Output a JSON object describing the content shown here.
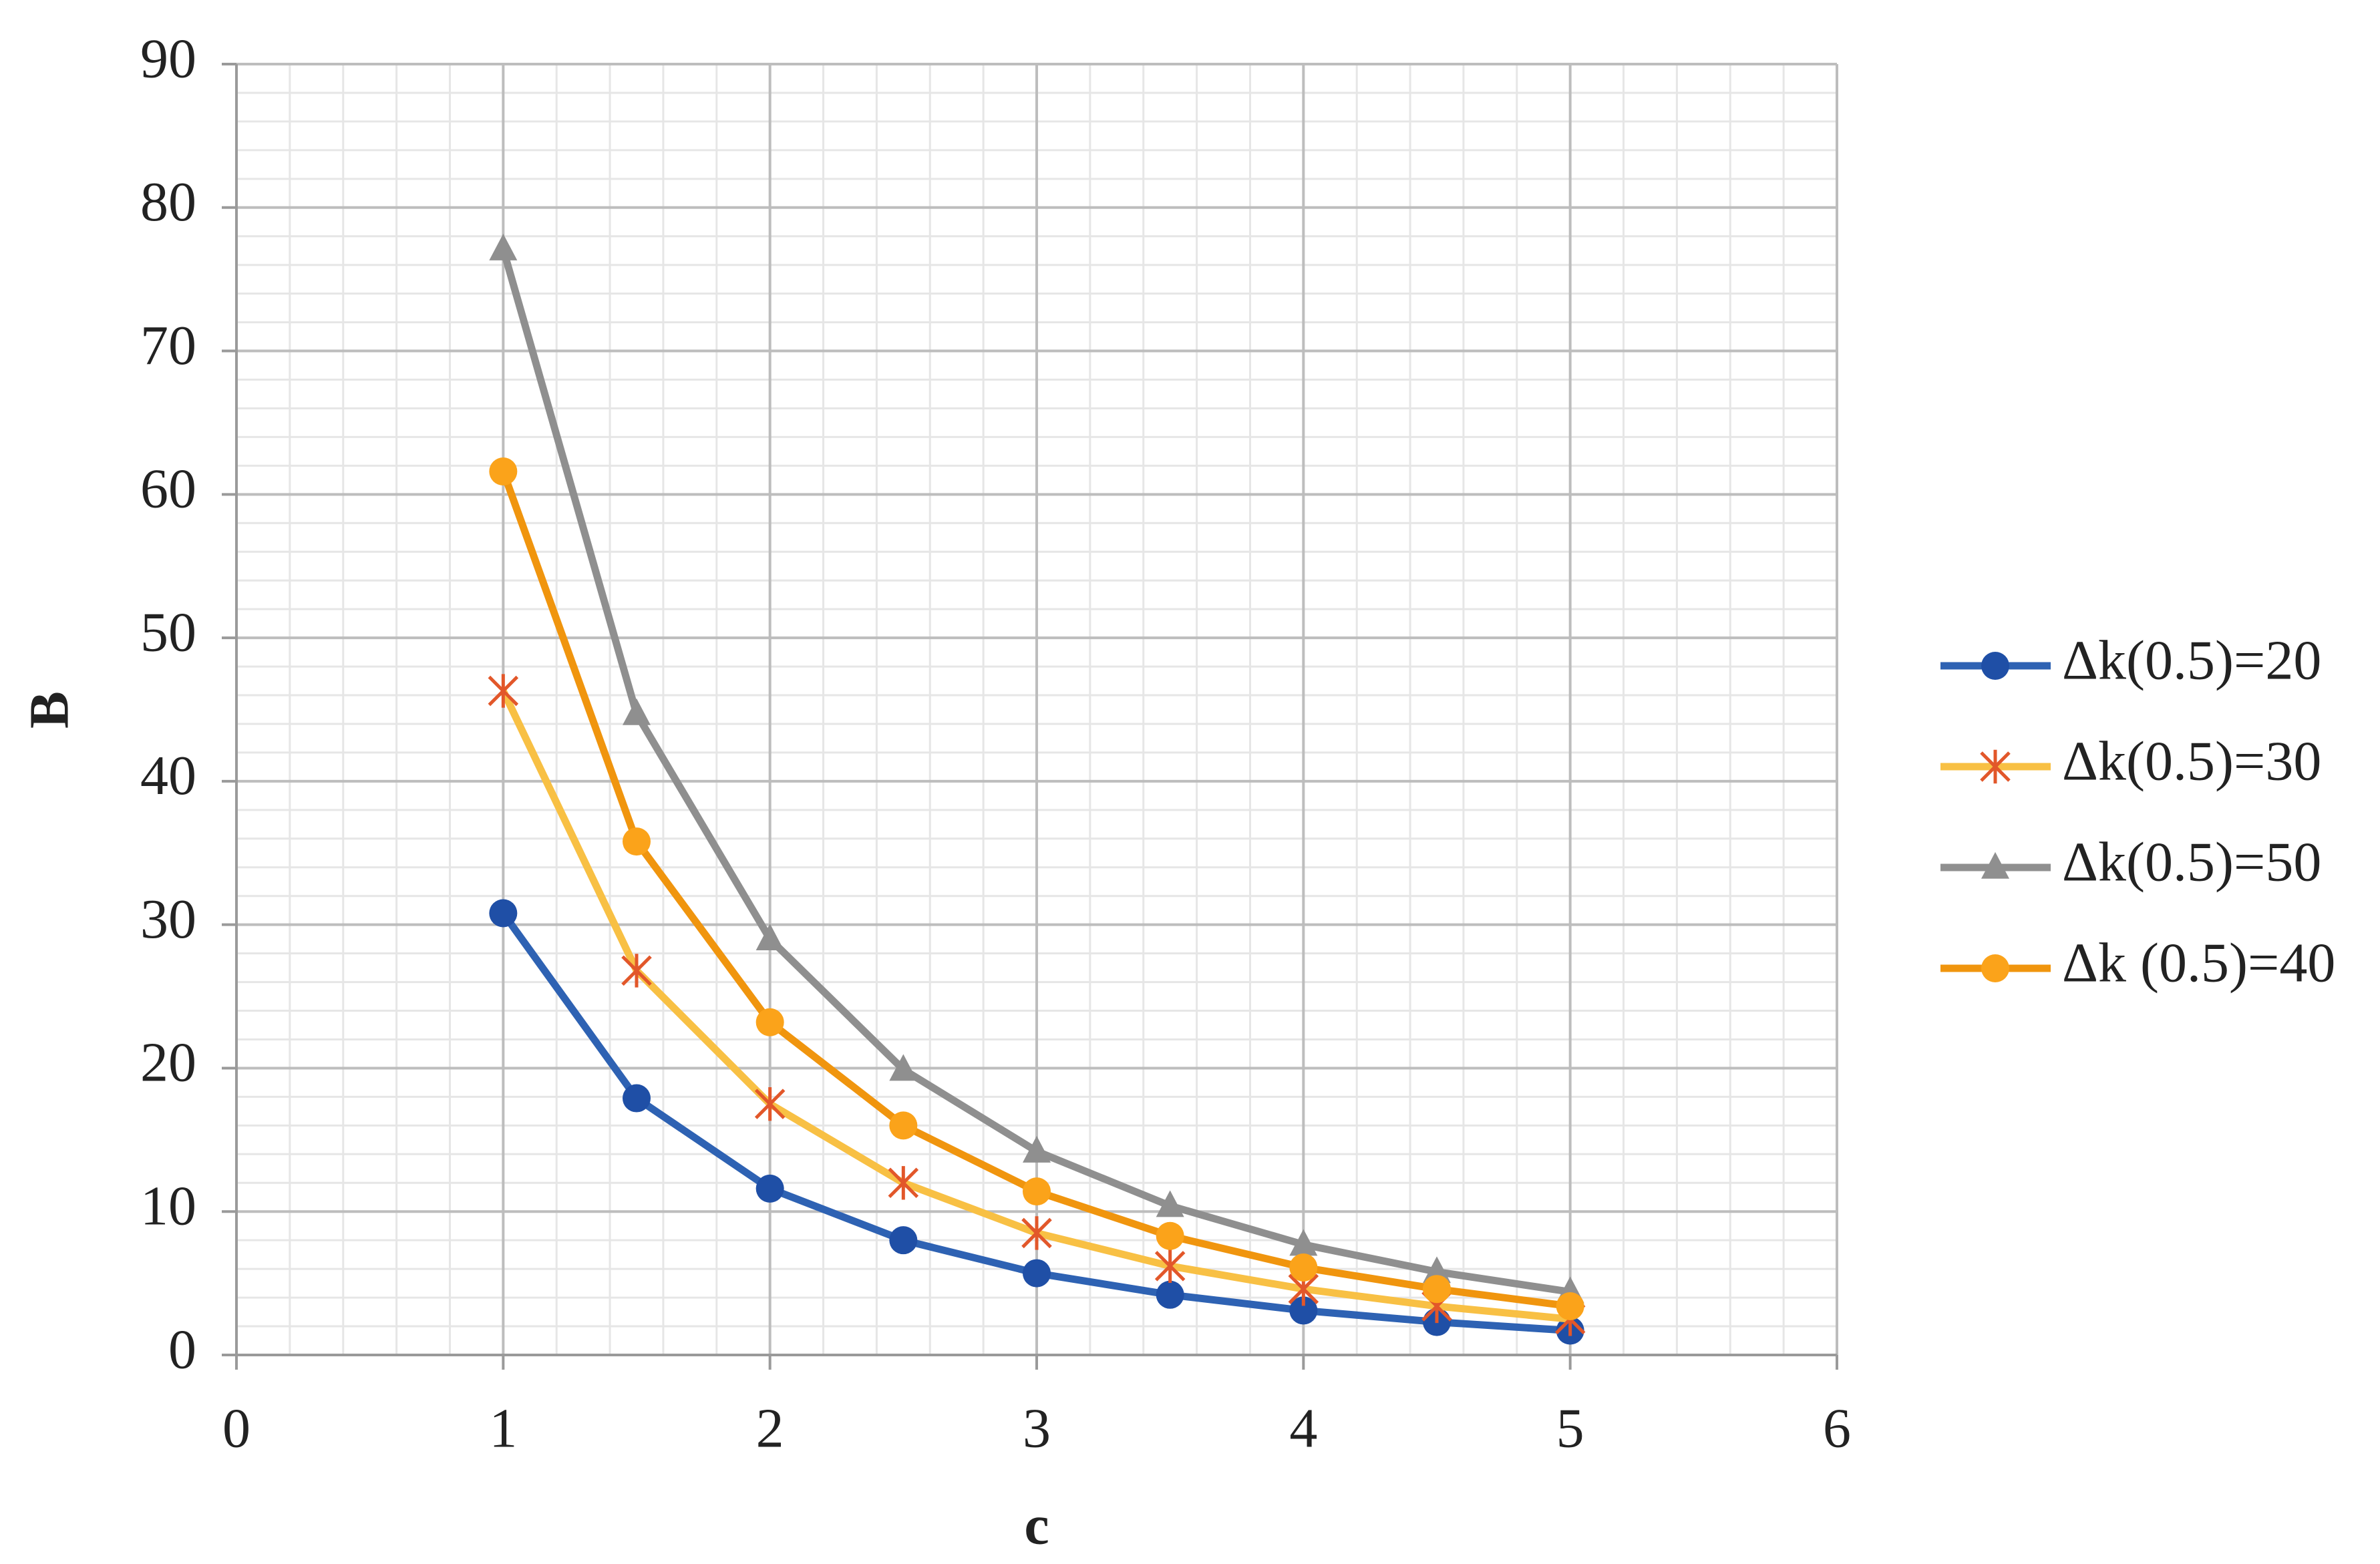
{
  "chart_data": {
    "type": "line",
    "xlabel": "c",
    "ylabel": "B",
    "x": [
      1,
      1.5,
      2,
      2.5,
      3,
      3.5,
      4,
      4.5,
      5
    ],
    "series": [
      {
        "name": "Δk(0.5)=20",
        "color": "#2e62b3",
        "marker_color": "#1f4fa6",
        "marker": "circle",
        "values": [
          30.8,
          17.9,
          11.6,
          8.0,
          5.7,
          4.2,
          3.1,
          2.3,
          1.7
        ]
      },
      {
        "name": "Δk(0.5)=30",
        "color": "#f8c044",
        "marker_color": "#e2572a",
        "marker": "asterisk",
        "values": [
          46.3,
          26.8,
          17.5,
          12.0,
          8.5,
          6.2,
          4.6,
          3.4,
          2.5
        ]
      },
      {
        "name": "Δk(0.5)=50",
        "color": "#8f8f8f",
        "marker_color": "#8f8f8f",
        "marker": "triangle",
        "values": [
          77.1,
          44.7,
          29.0,
          19.9,
          14.2,
          10.4,
          7.7,
          5.8,
          4.4
        ]
      },
      {
        "name": "Δk (0.5)=40",
        "color": "#f0950e",
        "marker_color": "#fba31a",
        "marker": "circle",
        "values": [
          61.6,
          35.8,
          23.2,
          16.0,
          11.4,
          8.3,
          6.1,
          4.6,
          3.4
        ]
      }
    ],
    "xlim": [
      0,
      6
    ],
    "xticks": [
      0,
      1,
      2,
      3,
      4,
      5,
      6
    ],
    "ylim": [
      0,
      90
    ],
    "yticks": [
      0,
      10,
      20,
      30,
      40,
      50,
      60,
      70,
      80,
      90
    ],
    "grid": true,
    "minor_grid": {
      "x": 0.2,
      "y": 2
    },
    "legend": "right"
  }
}
